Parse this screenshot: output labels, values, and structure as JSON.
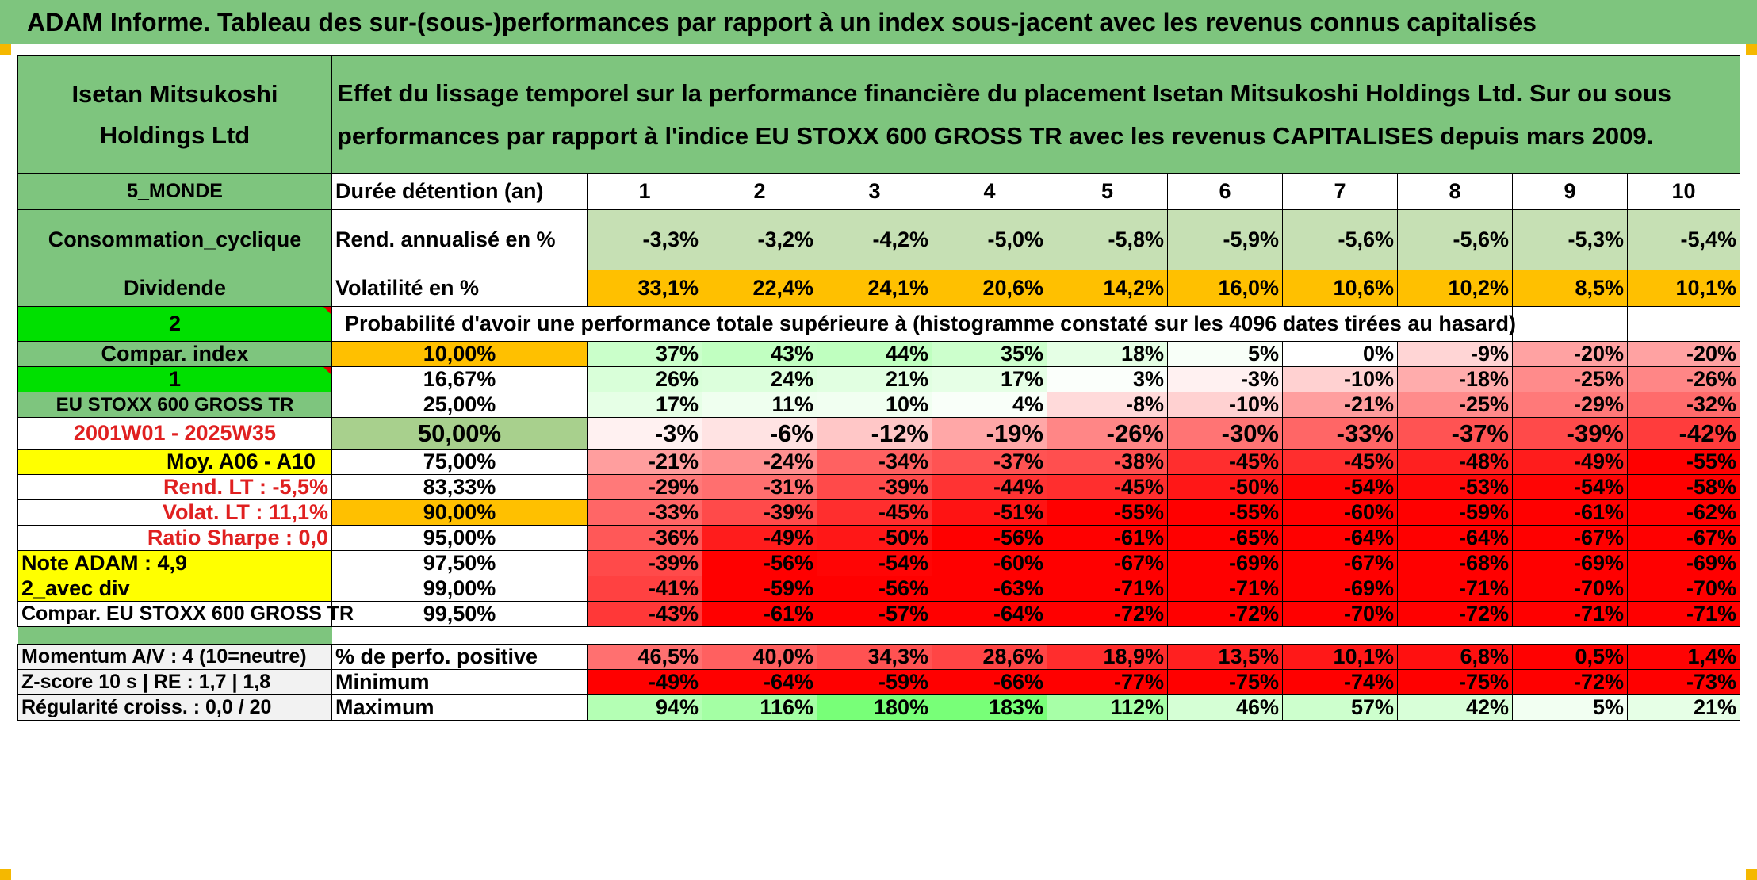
{
  "banner": "ADAM Informe. Tableau des sur-(sous-)performances par rapport à un index sous-jacent avec les revenus connus capitalisés",
  "header": {
    "company": "Isetan Mitsukoshi Holdings Ltd",
    "description": "Effet du lissage temporel sur la performance financière du placement Isetan Mitsukoshi Holdings Ltd. Sur ou sous performances par rapport à l'indice EU STOXX 600 GROSS TR avec les revenus CAPITALISES depuis mars 2009."
  },
  "left": {
    "region": "5_MONDE",
    "sector": "Consommation_cyclique",
    "dividend": "Dividende",
    "choice1": "2",
    "compar_index": "Compar. index",
    "choice2": "1",
    "index_name": "EU STOXX 600 GROSS TR",
    "period": "2001W01 - 2025W35",
    "moy": "Moy. A06 - A10",
    "rend_lt": "Rend. LT :   -5,5%",
    "volat_lt": "Volat. LT :   11,1%",
    "sharpe": "Ratio Sharpe :    0,0",
    "note": "Note ADAM : 4,9",
    "avec_div": "2_avec div",
    "compar": "Compar. EU STOXX 600 GROSS TR",
    "momentum": "Momentum A/V : 4 (10=neutre)",
    "zscore": "Z-score 10 s | RE : 1,7 | 1,8",
    "regularite": "Régularité croiss. : 0,0 / 20"
  },
  "labels": {
    "duree": "Durée détention (an)",
    "rend": "Rend. annualisé en %",
    "volat": "Volatilité en %",
    "proba": "Probabilité d'avoir une performance totale supérieure à (histogramme constaté sur les 4096 dates tirées au hasard)",
    "perfo_pos": "% de perfo. positive",
    "minimum": "Minimum",
    "maximum": "Maximum"
  },
  "years": [
    "1",
    "2",
    "3",
    "4",
    "5",
    "6",
    "7",
    "8",
    "9",
    "10"
  ],
  "rend": [
    "-3,3%",
    "-3,2%",
    "-4,2%",
    "-5,0%",
    "-5,8%",
    "-5,9%",
    "-5,6%",
    "-5,6%",
    "-5,3%",
    "-5,4%"
  ],
  "volat": [
    "33,1%",
    "22,4%",
    "24,1%",
    "20,6%",
    "14,2%",
    "16,0%",
    "10,6%",
    "10,2%",
    "8,5%",
    "10,1%"
  ],
  "percentiles": [
    {
      "p": "10,00%",
      "v": [
        "37%",
        "43%",
        "44%",
        "35%",
        "18%",
        "5%",
        "0%",
        "-9%",
        "-20%",
        "-20%"
      ]
    },
    {
      "p": "16,67%",
      "v": [
        "26%",
        "24%",
        "21%",
        "17%",
        "3%",
        "-3%",
        "-10%",
        "-18%",
        "-25%",
        "-26%"
      ]
    },
    {
      "p": "25,00%",
      "v": [
        "17%",
        "11%",
        "10%",
        "4%",
        "-8%",
        "-10%",
        "-21%",
        "-25%",
        "-29%",
        "-32%"
      ]
    },
    {
      "p": "50,00%",
      "v": [
        "-3%",
        "-6%",
        "-12%",
        "-19%",
        "-26%",
        "-30%",
        "-33%",
        "-37%",
        "-39%",
        "-42%"
      ]
    },
    {
      "p": "75,00%",
      "v": [
        "-21%",
        "-24%",
        "-34%",
        "-37%",
        "-38%",
        "-45%",
        "-45%",
        "-48%",
        "-49%",
        "-55%"
      ]
    },
    {
      "p": "83,33%",
      "v": [
        "-29%",
        "-31%",
        "-39%",
        "-44%",
        "-45%",
        "-50%",
        "-54%",
        "-53%",
        "-54%",
        "-58%"
      ]
    },
    {
      "p": "90,00%",
      "v": [
        "-33%",
        "-39%",
        "-45%",
        "-51%",
        "-55%",
        "-55%",
        "-60%",
        "-59%",
        "-61%",
        "-62%"
      ]
    },
    {
      "p": "95,00%",
      "v": [
        "-36%",
        "-49%",
        "-50%",
        "-56%",
        "-61%",
        "-65%",
        "-64%",
        "-64%",
        "-67%",
        "-67%"
      ]
    },
    {
      "p": "97,50%",
      "v": [
        "-39%",
        "-56%",
        "-54%",
        "-60%",
        "-67%",
        "-69%",
        "-67%",
        "-68%",
        "-69%",
        "-69%"
      ]
    },
    {
      "p": "99,00%",
      "v": [
        "-41%",
        "-59%",
        "-56%",
        "-63%",
        "-71%",
        "-71%",
        "-69%",
        "-71%",
        "-70%",
        "-70%"
      ]
    },
    {
      "p": "99,50%",
      "v": [
        "-43%",
        "-61%",
        "-57%",
        "-64%",
        "-72%",
        "-72%",
        "-70%",
        "-72%",
        "-71%",
        "-71%"
      ]
    }
  ],
  "perfo_pos": [
    "46,5%",
    "40,0%",
    "34,3%",
    "28,6%",
    "18,9%",
    "13,5%",
    "10,1%",
    "6,8%",
    "0,5%",
    "1,4%"
  ],
  "minimum": [
    "-49%",
    "-64%",
    "-59%",
    "-66%",
    "-77%",
    "-75%",
    "-74%",
    "-75%",
    "-72%",
    "-73%"
  ],
  "maximum": [
    "94%",
    "116%",
    "180%",
    "183%",
    "112%",
    "46%",
    "57%",
    "42%",
    "5%",
    "21%"
  ],
  "colors": {
    "header_green": "#7ec57e",
    "bright_green": "#00e000",
    "yellow": "#ffff00",
    "orange": "#ffc000",
    "red_text": "#e02020"
  }
}
